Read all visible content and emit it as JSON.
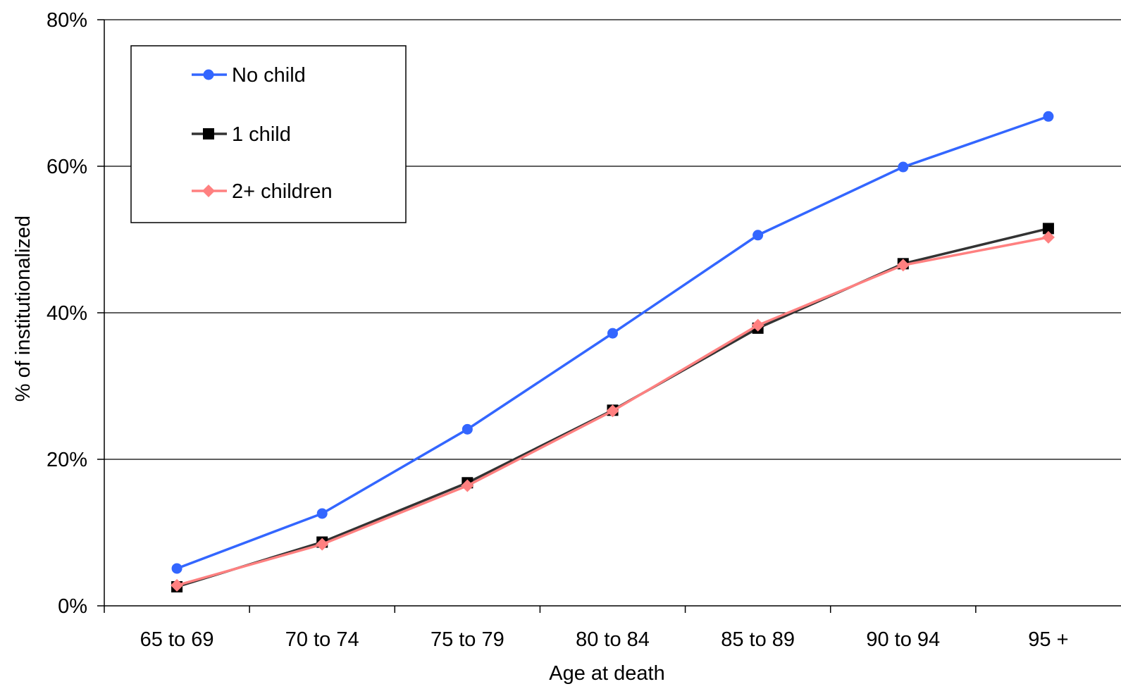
{
  "chart_data": {
    "type": "line",
    "title": "",
    "xlabel": "Age at death",
    "ylabel": "% of institutionalized",
    "categories": [
      "65 to 69",
      "70 to 74",
      "75 to 79",
      "80 to 84",
      "85 to 89",
      "90 to 94",
      "95 +"
    ],
    "ylim": [
      0,
      80
    ],
    "yticks": [
      0,
      20,
      40,
      60,
      80
    ],
    "ytick_labels": [
      "0%",
      "20%",
      "40%",
      "60%",
      "80%"
    ],
    "grid": "horizontal",
    "legend_position": "top-left",
    "series": [
      {
        "name": "No child",
        "color": "#3366ff",
        "marker": "circle",
        "values": [
          5.1,
          12.6,
          24.1,
          37.2,
          50.6,
          59.9,
          66.8
        ]
      },
      {
        "name": "1 child",
        "color": "#000000",
        "line_color": "#333333",
        "marker": "square",
        "values": [
          2.6,
          8.7,
          16.8,
          26.7,
          37.9,
          46.7,
          51.5
        ]
      },
      {
        "name": "2+ children",
        "color": "#ff8080",
        "marker": "diamond",
        "values": [
          2.8,
          8.4,
          16.4,
          26.6,
          38.3,
          46.5,
          50.3
        ]
      }
    ]
  }
}
